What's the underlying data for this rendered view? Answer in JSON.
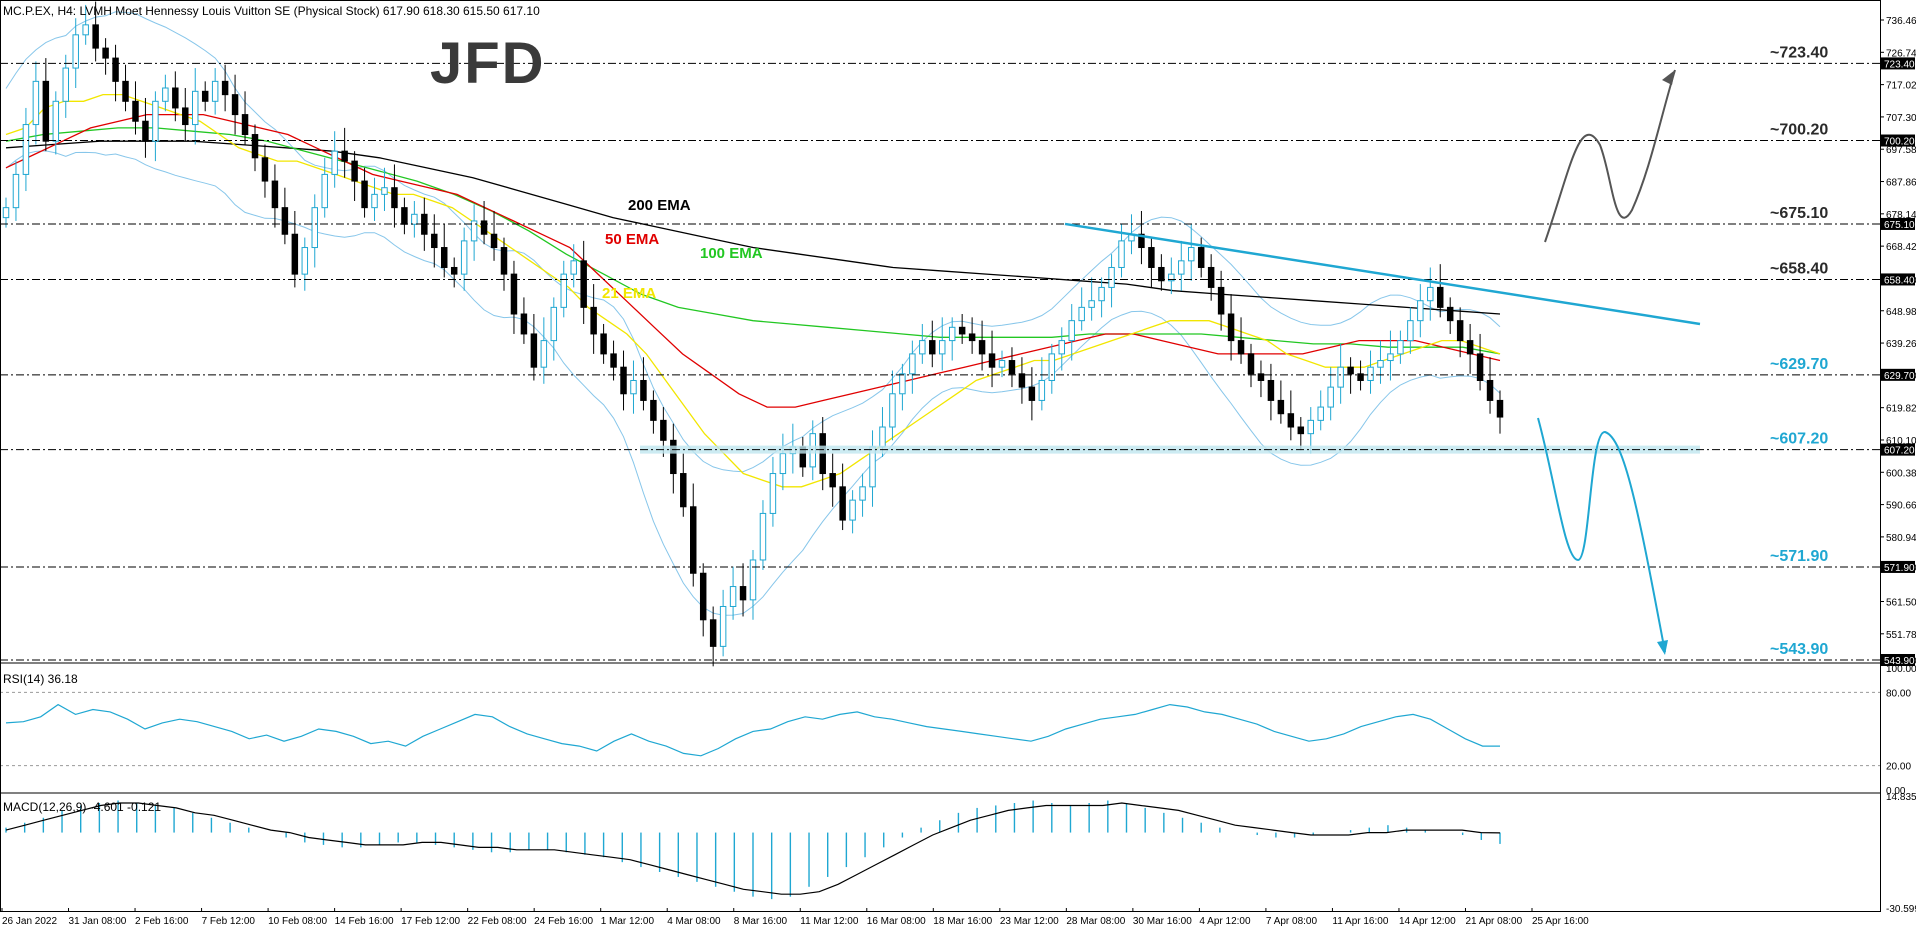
{
  "header": {
    "main": "MC.P.EX, H4:  LVMH Moet Hennessy Louis Vuitton SE (Physical Stock)  617.90 618.30 615.50 617.10",
    "rsi": "RSI(14) 36.18",
    "macd": "MACD(12,26,9) -4.601 -0.121"
  },
  "logo": "JFD",
  "colors": {
    "up_candle": "#1fa7d2",
    "down_candle": "#000000",
    "bollinger": "#87c6ea",
    "ema21": "#f2e600",
    "ema50": "#e00000",
    "ema100": "#22c722",
    "ema200": "#000000",
    "trend": "#1fa7d2",
    "rsi": "#1fa7d2"
  },
  "chart_data": [
    {
      "type": "candlestick",
      "symbol": "MC.P.EX",
      "timeframe": "H4",
      "ylim": [
        543.9,
        736.46
      ],
      "y_ticks": [
        "736.46",
        "726.74",
        "717.02",
        "707.30",
        "697.58",
        "687.86",
        "678.14",
        "668.42",
        "658.40",
        "648.98",
        "639.26",
        "629.70",
        "619.82",
        "610.10",
        "600.38",
        "590.66",
        "580.94",
        "571.90",
        "561.50",
        "551.78",
        "543.90"
      ],
      "x_ticks": [
        "26 Jan 2022",
        "31 Jan 08:00",
        "2 Feb 16:00",
        "7 Feb 12:00",
        "10 Feb 08:00",
        "14 Feb 16:00",
        "17 Feb 12:00",
        "22 Feb 08:00",
        "24 Feb 16:00",
        "1 Mar 12:00",
        "4 Mar 08:00",
        "8 Mar 16:00",
        "11 Mar 12:00",
        "16 Mar 08:00",
        "18 Mar 16:00",
        "23 Mar 12:00",
        "28 Mar 08:00",
        "30 Mar 16:00",
        "4 Apr 12:00",
        "7 Apr 08:00",
        "11 Apr 16:00",
        "14 Apr 12:00",
        "21 Apr 08:00",
        "25 Apr 16:00"
      ],
      "close_path": [
        680,
        690,
        705,
        718,
        700,
        712,
        722,
        732,
        735,
        728,
        725,
        718,
        712,
        706,
        700,
        712,
        716,
        710,
        705,
        715,
        712,
        718,
        714,
        708,
        702,
        695,
        688,
        680,
        672,
        660,
        668,
        680,
        690,
        697,
        694,
        688,
        680,
        684,
        686,
        680,
        675,
        678,
        672,
        668,
        662,
        660,
        670,
        676,
        672,
        668,
        660,
        648,
        642,
        632,
        640,
        650,
        660,
        664,
        650,
        642,
        636,
        632,
        624,
        628,
        622,
        616,
        610,
        600,
        590,
        570,
        556,
        548,
        560,
        566,
        562,
        574,
        588,
        600,
        606,
        608,
        602,
        612,
        600,
        596,
        586,
        592,
        596,
        608,
        614,
        624,
        630,
        636,
        640,
        636,
        640,
        644,
        642,
        640,
        636,
        632,
        634,
        630,
        626,
        622,
        628,
        636,
        640,
        646,
        650,
        652,
        656,
        662,
        670,
        672,
        668,
        662,
        658,
        660,
        664,
        668,
        662,
        656,
        648,
        640,
        636,
        630,
        628,
        622,
        618,
        614,
        612,
        616,
        620,
        626,
        632,
        630,
        628,
        632,
        634,
        636,
        640,
        646,
        652,
        656,
        650,
        646,
        640,
        636,
        628,
        622,
        617
      ],
      "ema21_path": [
        702,
        704,
        710,
        712,
        712,
        714,
        714,
        712,
        710,
        708,
        706,
        702,
        698,
        696,
        694,
        694,
        692,
        690,
        688,
        686,
        684,
        684,
        682,
        680,
        676,
        672,
        668,
        664,
        660,
        656,
        650,
        646,
        642,
        636,
        628,
        620,
        612,
        606,
        600,
        598,
        596,
        596,
        598,
        600,
        604,
        608,
        612,
        616,
        620,
        624,
        628,
        630,
        632,
        634,
        634,
        636,
        638,
        640,
        642,
        644,
        646,
        646,
        646,
        644,
        642,
        640,
        636,
        634,
        632,
        632,
        632,
        634,
        636,
        638,
        640,
        640,
        638,
        636
      ],
      "ema50_path": [
        692,
        696,
        700,
        704,
        706,
        708,
        708,
        708,
        706,
        704,
        702,
        698,
        694,
        690,
        688,
        686,
        684,
        680,
        676,
        672,
        668,
        660,
        652,
        644,
        636,
        630,
        624,
        620,
        620,
        622,
        624,
        626,
        628,
        630,
        632,
        634,
        636,
        638,
        640,
        642,
        642,
        640,
        638,
        636,
        636,
        636,
        636,
        638,
        640,
        640,
        640,
        638,
        636,
        634
      ],
      "ema100_path": [
        700,
        702,
        703,
        704,
        704,
        703,
        702,
        700,
        697,
        694,
        691,
        688,
        684,
        679,
        673,
        666,
        660,
        654,
        650,
        648,
        646,
        645,
        644,
        643,
        642,
        641,
        641,
        641,
        641,
        642,
        642,
        642,
        642,
        641,
        640,
        639,
        639,
        638,
        638,
        638,
        636
      ],
      "ema200_path": [
        698,
        699,
        700,
        700,
        700,
        699,
        698,
        697,
        695,
        692,
        689,
        685,
        681,
        677,
        674,
        671,
        668,
        666,
        664,
        662,
        661,
        660,
        659,
        658,
        657,
        655,
        654,
        653,
        652,
        651,
        650,
        649,
        648
      ],
      "levels": [
        {
          "label": "~723.40",
          "value": 723.4,
          "style": "dash-dot"
        },
        {
          "label": "~700.20",
          "value": 700.2,
          "style": "dash-dot"
        },
        {
          "label": "~675.10",
          "value": 675.1,
          "style": "dash-dot"
        },
        {
          "label": "~658.40",
          "value": 658.4,
          "style": "dash-dot"
        },
        {
          "label": "~629.70",
          "value": 629.7,
          "style": "dash-dot"
        },
        {
          "label": "~607.20",
          "value": 607.2,
          "style": "support-zone"
        },
        {
          "label": "~571.90",
          "value": 571.9,
          "style": "dash-dot"
        },
        {
          "label": "~543.90",
          "value": 543.9,
          "style": "dash-dot"
        }
      ],
      "ema_labels": [
        {
          "label": "200 EMA",
          "color": "#000000"
        },
        {
          "label": "50 EMA",
          "color": "#e00000"
        },
        {
          "label": "100 EMA",
          "color": "#22c722"
        },
        {
          "label": "21 EMA",
          "color": "#f2e600"
        }
      ],
      "trendline": {
        "from": 675.1,
        "to": 645.0
      }
    },
    {
      "type": "line",
      "name": "RSI(14)",
      "value": 36.18,
      "ylim": [
        0,
        100
      ],
      "y_ticks": [
        "100.00",
        "80.00",
        "20.00",
        "0.00"
      ],
      "values": [
        55,
        56,
        60,
        70,
        62,
        66,
        64,
        58,
        50,
        55,
        58,
        56,
        52,
        48,
        42,
        45,
        40,
        44,
        50,
        48,
        44,
        38,
        40,
        36,
        44,
        50,
        56,
        62,
        60,
        52,
        46,
        42,
        38,
        36,
        32,
        40,
        46,
        40,
        36,
        30,
        28,
        34,
        42,
        48,
        50,
        56,
        60,
        58,
        62,
        64,
        60,
        58,
        55,
        52,
        50,
        48,
        46,
        44,
        42,
        40,
        44,
        50,
        54,
        58,
        60,
        62,
        66,
        70,
        68,
        64,
        62,
        58,
        54,
        48,
        44,
        40,
        42,
        46,
        52,
        56,
        60,
        62,
        58,
        50,
        42,
        36,
        36
      ]
    },
    {
      "type": "histogram",
      "name": "MACD(12,26,9)",
      "value": -4.601,
      "signal": -0.121,
      "ylim": [
        -30.599,
        14.835
      ],
      "y_ticks": [
        "14.835",
        "-30.599"
      ],
      "values": [
        2,
        4,
        6,
        9,
        11,
        12,
        13,
        12,
        11,
        10,
        8,
        6,
        4,
        2,
        0,
        -2,
        -4,
        -5,
        -6,
        -6,
        -5,
        -4,
        -4,
        -5,
        -6,
        -7,
        -8,
        -8,
        -7,
        -7,
        -8,
        -9,
        -10,
        -12,
        -14,
        -16,
        -18,
        -20,
        -22,
        -24,
        -26,
        -27,
        -26,
        -22,
        -18,
        -14,
        -10,
        -6,
        -2,
        2,
        5,
        8,
        10,
        11,
        12,
        13,
        12,
        11,
        12,
        13,
        12,
        10,
        8,
        6,
        4,
        2,
        0,
        -1,
        -2,
        -2,
        -1,
        0,
        1,
        2,
        3,
        2,
        1,
        0,
        -1,
        -3,
        -4.6
      ],
      "signal_values": [
        1,
        3,
        5,
        7,
        9,
        11,
        12,
        12,
        11,
        10,
        8,
        7,
        5,
        3,
        1,
        0,
        -2,
        -3,
        -4,
        -5,
        -5,
        -5,
        -4,
        -4,
        -5,
        -6,
        -6,
        -7,
        -7,
        -7,
        -8,
        -9,
        -10,
        -11,
        -13,
        -15,
        -17,
        -19,
        -21,
        -23,
        -24,
        -25,
        -25,
        -24,
        -21,
        -17,
        -13,
        -9,
        -5,
        -1,
        2,
        5,
        7,
        9,
        10,
        11,
        11,
        11,
        11,
        12,
        11,
        10,
        9,
        7,
        5,
        3,
        2,
        1,
        0,
        -1,
        -1,
        -1,
        0,
        0,
        1,
        1,
        1,
        1,
        0,
        -0.121
      ]
    }
  ]
}
